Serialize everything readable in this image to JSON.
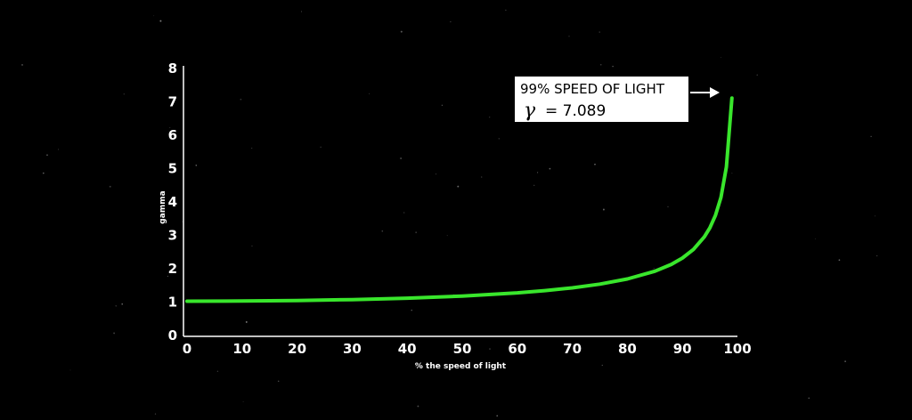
{
  "chart_data": {
    "type": "line",
    "title": "",
    "xlabel": "% the speed of light",
    "ylabel": "gamma",
    "xlim": [
      0,
      100
    ],
    "ylim": [
      0,
      8
    ],
    "x_ticks": [
      "0",
      "10",
      "20",
      "30",
      "40",
      "50",
      "60",
      "70",
      "80",
      "90",
      "100"
    ],
    "y_ticks": [
      "0",
      "1",
      "2",
      "3",
      "4",
      "5",
      "6",
      "7",
      "8"
    ],
    "grid": false,
    "series": [
      {
        "x": [
          0,
          10,
          20,
          30,
          40,
          50,
          60,
          65,
          70,
          75,
          80,
          85,
          88,
          90,
          92,
          94,
          95,
          96,
          97,
          98,
          99
        ],
        "y": [
          1.0,
          1.005,
          1.021,
          1.048,
          1.091,
          1.155,
          1.25,
          1.316,
          1.4,
          1.512,
          1.667,
          1.898,
          2.105,
          2.294,
          2.552,
          2.931,
          3.203,
          3.571,
          4.113,
          5.025,
          7.089
        ],
        "color": "#39e62c"
      }
    ],
    "annotation": {
      "title": "99% SPEED OF LIGHT",
      "symbol": "γ",
      "value": "= 7.089",
      "point_x": 99,
      "point_y": 7.089
    }
  },
  "colors": {
    "background": "#000000",
    "axis": "#ffffff",
    "line": "#39e62c",
    "callout_bg": "#ffffff",
    "callout_text": "#000000"
  }
}
